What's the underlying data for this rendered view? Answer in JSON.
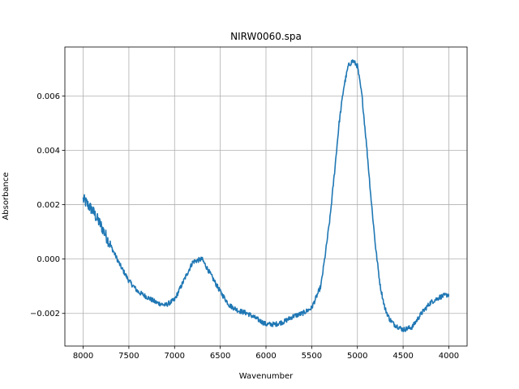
{
  "chart_data": {
    "type": "line",
    "title": "NIRW0060.spa",
    "xlabel": "Wavenumber",
    "ylabel": "Absorbance",
    "xlim": [
      8200,
      3800
    ],
    "ylim": [
      -0.0032,
      0.0078
    ],
    "x_inverted": true,
    "grid": true,
    "line_color": "#1f77b4",
    "xticks": [
      8000,
      7500,
      7000,
      6500,
      6000,
      5500,
      5000,
      4500,
      4000
    ],
    "xtick_labels": [
      "8000",
      "7500",
      "7000",
      "6500",
      "6000",
      "5500",
      "5000",
      "4500",
      "4000"
    ],
    "yticks": [
      -0.002,
      0.0,
      0.002,
      0.004,
      0.006
    ],
    "ytick_labels": [
      "−0.002",
      "0.000",
      "0.002",
      "0.004",
      "0.006"
    ],
    "series": [
      {
        "x": [
          8000,
          7900,
          7800,
          7700,
          7600,
          7500,
          7400,
          7300,
          7200,
          7100,
          7000,
          6900,
          6800,
          6700,
          6600,
          6500,
          6400,
          6300,
          6200,
          6100,
          6000,
          5900,
          5800,
          5700,
          5600,
          5500,
          5400,
          5350,
          5300,
          5250,
          5200,
          5150,
          5100,
          5050,
          5000,
          4950,
          4900,
          4850,
          4800,
          4750,
          4700,
          4650,
          4600,
          4500,
          4400,
          4300,
          4200,
          4100,
          4000
        ],
        "y": [
          0.0022,
          0.0018,
          0.0012,
          0.0005,
          -0.0002,
          -0.0008,
          -0.0012,
          -0.0014,
          -0.0016,
          -0.0017,
          -0.0015,
          -0.0008,
          -0.0001,
          0.0,
          -0.0006,
          -0.0012,
          -0.0017,
          -0.0019,
          -0.002,
          -0.0022,
          -0.0024,
          -0.0024,
          -0.0023,
          -0.0021,
          -0.002,
          -0.0018,
          -0.001,
          0.0002,
          0.0015,
          0.0032,
          0.005,
          0.0063,
          0.0071,
          0.0073,
          0.0071,
          0.006,
          0.0042,
          0.0022,
          0.0004,
          -0.001,
          -0.0018,
          -0.0022,
          -0.0024,
          -0.0026,
          -0.0025,
          -0.002,
          -0.0016,
          -0.0014,
          -0.0013
        ]
      }
    ]
  }
}
